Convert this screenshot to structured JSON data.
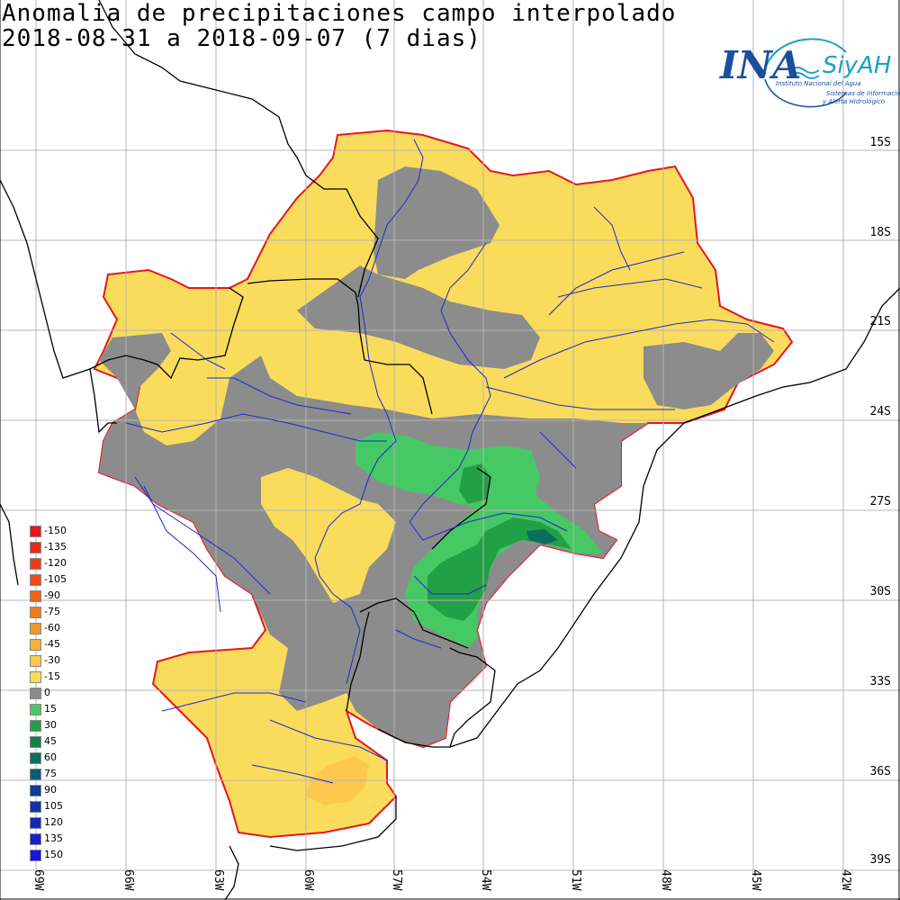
{
  "title": {
    "line1": "Anomalia de precipitaciones campo interpolado",
    "line2": "2018-08-31 a 2018-09-07 (7 dias)"
  },
  "logo": {
    "ina": "INA",
    "siyah": "SiyAH",
    "sub1": "Instituto Nacional del Agua",
    "sub2": "Sistemas de Información",
    "sub3": "y Alerta Hidrológico"
  },
  "lat_labels": [
    "15S",
    "18S",
    "21S",
    "24S",
    "27S",
    "30S",
    "33S",
    "36S",
    "39S"
  ],
  "lon_labels": [
    "69W",
    "66W",
    "63W",
    "60W",
    "57W",
    "54W",
    "51W",
    "48W",
    "45W",
    "42W"
  ],
  "legend": [
    {
      "label": "-150",
      "color": "#e8141e"
    },
    {
      "label": "-135",
      "color": "#ea2a1a"
    },
    {
      "label": "-120",
      "color": "#ec3c16"
    },
    {
      "label": "-105",
      "color": "#ee4e14"
    },
    {
      "label": "-90",
      "color": "#f06414"
    },
    {
      "label": "-75",
      "color": "#f27c1c"
    },
    {
      "label": "-60",
      "color": "#f4962c"
    },
    {
      "label": "-45",
      "color": "#f8b040"
    },
    {
      "label": "-30",
      "color": "#fcc84e"
    },
    {
      "label": "-15",
      "color": "#fadc5c"
    },
    {
      "label": "0",
      "color": "#8c8c8c"
    },
    {
      "label": "15",
      "color": "#46c864"
    },
    {
      "label": "30",
      "color": "#22a046"
    },
    {
      "label": "45",
      "color": "#12824a"
    },
    {
      "label": "60",
      "color": "#0a6e5c"
    },
    {
      "label": "75",
      "color": "#0a5a78"
    },
    {
      "label": "90",
      "color": "#0e3c96"
    },
    {
      "label": "105",
      "color": "#1232aa"
    },
    {
      "label": "120",
      "color": "#1428be"
    },
    {
      "label": "135",
      "color": "#161ed2"
    },
    {
      "label": "150",
      "color": "#1814e6"
    }
  ]
}
